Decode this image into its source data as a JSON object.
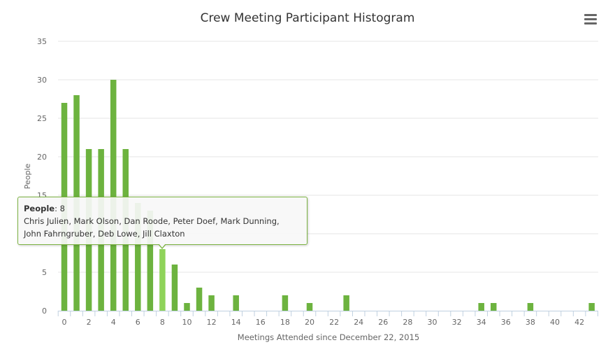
{
  "chart_data": {
    "type": "bar",
    "title": "Crew Meeting Participant Histogram",
    "xlabel": "Meetings Attended since December 22, 2015",
    "ylabel": "People",
    "xlim": [
      0,
      43
    ],
    "ylim": [
      0,
      35
    ],
    "yticks": [
      0,
      5,
      10,
      15,
      20,
      25,
      30,
      35
    ],
    "xticks": [
      0,
      2,
      4,
      6,
      8,
      10,
      12,
      14,
      16,
      18,
      20,
      22,
      24,
      26,
      28,
      30,
      32,
      34,
      36,
      38,
      40,
      42
    ],
    "grid": true,
    "legend": "none",
    "bar_color": "#6db33f",
    "highlight_color": "#8fd35a",
    "highlighted_x": 8,
    "x": [
      0,
      1,
      2,
      3,
      4,
      5,
      6,
      7,
      8,
      9,
      10,
      11,
      12,
      14,
      18,
      20,
      23,
      34,
      35,
      38,
      43
    ],
    "values": [
      27,
      28,
      21,
      21,
      30,
      21,
      14,
      13,
      8,
      6,
      1,
      3,
      2,
      2,
      2,
      1,
      2,
      1,
      1,
      1,
      1
    ]
  },
  "tooltip": {
    "label": "People",
    "value": "8",
    "names_line1": "Chris Julien, Mark Olson, Dan Roode, Peter Doef, Mark Dunning,",
    "names_line2": "John Fahrngruber, Deb Lowe, Jill Claxton"
  },
  "icons": {
    "menu": "hamburger-menu-icon"
  }
}
